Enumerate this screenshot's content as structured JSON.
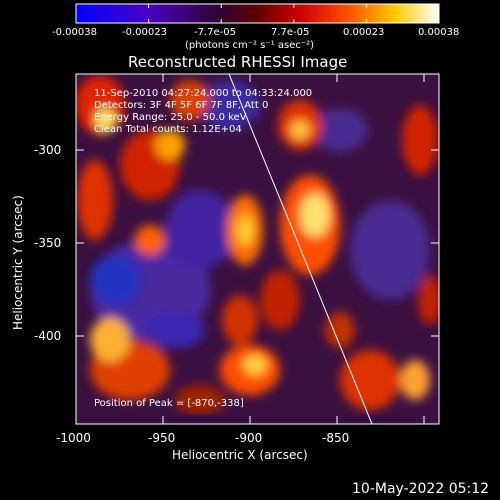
{
  "colorbar": {
    "tick_labels": [
      "-0.00038",
      "-0.00023",
      "-7.7e-05",
      "7.7e-05",
      "0.00023",
      "0.00038"
    ],
    "unit_label": "(photons cm⁻² s⁻¹ asec⁻²)",
    "stops": [
      "#0000ff",
      "#4a00b0",
      "#3a0040",
      "#8a0000",
      "#e60000",
      "#ff6a00",
      "#ffd000",
      "#ffffff"
    ]
  },
  "plot": {
    "title": "Reconstructed RHESSI Image",
    "xlabel": "Heliocentric X (arcsec)",
    "ylabel": "Heliocentric Y (arcsec)",
    "x_ticks": [
      "-1000",
      "-950",
      "-900",
      "-850"
    ],
    "y_ticks": [
      "-300",
      "-350",
      "-400"
    ],
    "info_lines": [
      "11-Sep-2010 04:27:24.000 to 04:33:24.000",
      "Detectors: 3F 4F 5F 6F 7F 8F, Att 0",
      "Energy Range: 25.0 - 50.0 keV",
      "Clean    Total counts: 1.12E+04"
    ],
    "peak_label": "Position of Peak = [-870,-338]"
  },
  "footer": {
    "timestamp": "10-May-2022 05:12"
  }
}
